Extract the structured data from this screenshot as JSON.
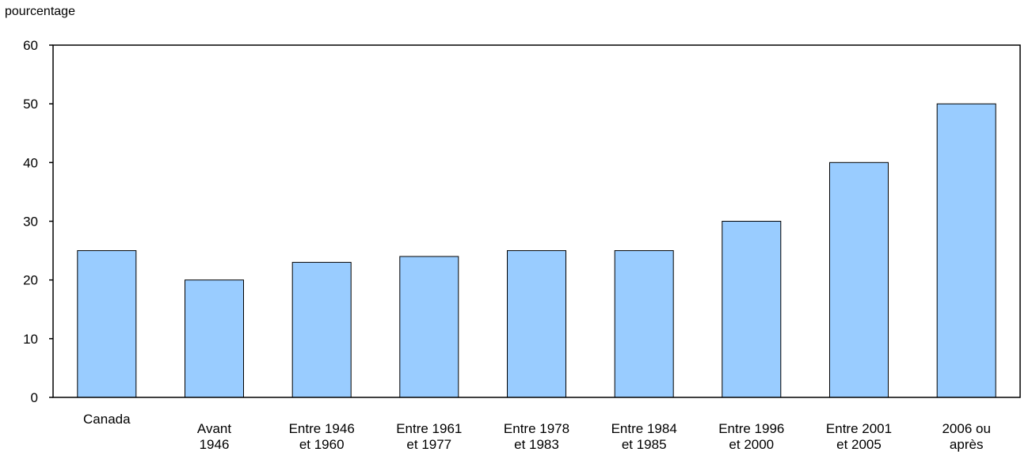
{
  "chart_data": {
    "type": "bar",
    "title": "",
    "xlabel": "",
    "ylabel": "pourcentage",
    "ylim": [
      0,
      60
    ],
    "yticks": [
      0,
      10,
      20,
      30,
      40,
      50,
      60
    ],
    "grid": false,
    "legend": "none",
    "bar_color": "#99ccff",
    "bar_stroke": "#000000",
    "categories": [
      [
        "Canada"
      ],
      [
        "Avant",
        "1946"
      ],
      [
        "Entre 1946",
        "et 1960"
      ],
      [
        "Entre 1961",
        "et 1977"
      ],
      [
        "Entre 1978",
        "et 1983"
      ],
      [
        "Entre 1984",
        "et 1985"
      ],
      [
        "Entre 1996",
        "et 2000"
      ],
      [
        "Entre 2001",
        "et 2005"
      ],
      [
        "2006 ou",
        "après"
      ]
    ],
    "values": [
      25,
      20,
      23,
      24,
      25,
      25,
      30,
      40,
      50
    ]
  }
}
